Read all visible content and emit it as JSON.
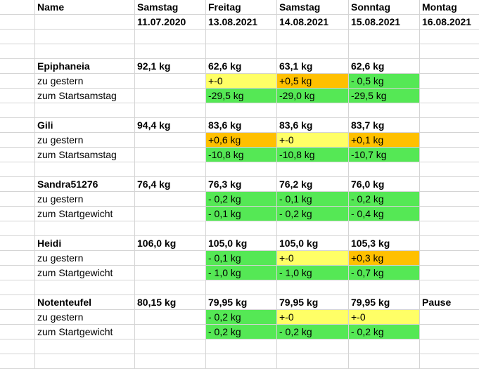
{
  "header": {
    "name": "Name",
    "days": [
      {
        "day": "Samstag",
        "date": "11.07.2020"
      },
      {
        "day": "Freitag",
        "date": "13.08.2021"
      },
      {
        "day": "Samstag",
        "date": "14.08.2021"
      },
      {
        "day": "Sonntag",
        "date": "15.08.2021"
      },
      {
        "day": "Montag",
        "date": "16.08.2021"
      }
    ]
  },
  "colors": {
    "green": "#55e855",
    "yellow": "#ffff66",
    "orange": "#ffc000"
  },
  "people": [
    {
      "name": "Epiphaneia",
      "weights": [
        "92,1 kg",
        "62,6 kg",
        "63,1 kg",
        "62,6 kg",
        ""
      ],
      "diff_label": "zu gestern",
      "diffs": [
        {
          "v": "+-0",
          "c": "yellow"
        },
        {
          "v": "+0,5 kg",
          "c": "orange"
        },
        {
          "v": "- 0,5 kg",
          "c": "green"
        }
      ],
      "total_label": "zum Startsamstag",
      "totals": [
        {
          "v": "-29,5 kg",
          "c": "green"
        },
        {
          "v": "-29,0 kg",
          "c": "green"
        },
        {
          "v": "-29,5 kg",
          "c": "green"
        }
      ]
    },
    {
      "name": "Gili",
      "weights": [
        "94,4 kg",
        "83,6 kg",
        "83,6 kg",
        "83,7 kg",
        ""
      ],
      "diff_label": "zu gestern",
      "diffs": [
        {
          "v": "+0,6 kg",
          "c": "orange"
        },
        {
          "v": "+-0",
          "c": "yellow"
        },
        {
          "v": "+0,1 kg",
          "c": "orange"
        }
      ],
      "total_label": "zum Startsamstag",
      "totals": [
        {
          "v": "-10,8 kg",
          "c": "green"
        },
        {
          "v": "-10,8 kg",
          "c": "green"
        },
        {
          "v": "-10,7 kg",
          "c": "green"
        }
      ]
    },
    {
      "name": "Sandra51276",
      "weights": [
        "76,4 kg",
        "76,3 kg",
        "76,2 kg",
        "76,0 kg",
        ""
      ],
      "diff_label": "zu gestern",
      "diffs": [
        {
          "v": "- 0,2 kg",
          "c": "green"
        },
        {
          "v": "- 0,1 kg",
          "c": "green"
        },
        {
          "v": "- 0,2 kg",
          "c": "green"
        }
      ],
      "total_label": "zum Startgewicht",
      "totals": [
        {
          "v": "- 0,1 kg",
          "c": "green"
        },
        {
          "v": "- 0,2 kg",
          "c": "green"
        },
        {
          "v": "- 0,4 kg",
          "c": "green"
        }
      ]
    },
    {
      "name": "Heidi",
      "weights": [
        "106,0 kg",
        "105,0 kg",
        "105,0 kg",
        "105,3 kg",
        ""
      ],
      "diff_label": "zu gestern",
      "diffs": [
        {
          "v": "- 0,1 kg",
          "c": "green"
        },
        {
          "v": "+-0",
          "c": "yellow"
        },
        {
          "v": "+0,3 kg",
          "c": "orange"
        }
      ],
      "total_label": "zum Startgewicht",
      "totals": [
        {
          "v": "- 1,0 kg",
          "c": "green"
        },
        {
          "v": "- 1,0 kg",
          "c": "green"
        },
        {
          "v": "- 0,7 kg",
          "c": "green"
        }
      ]
    },
    {
      "name": "Notenteufel",
      "weights": [
        "80,15 kg",
        "79,95 kg",
        "79,95 kg",
        "79,95 kg",
        "Pause"
      ],
      "diff_label": "zu gestern",
      "diffs": [
        {
          "v": "- 0,2 kg",
          "c": "green"
        },
        {
          "v": "+-0",
          "c": "yellow"
        },
        {
          "v": "+-0",
          "c": "yellow"
        }
      ],
      "total_label": "zum Startgewicht",
      "totals": [
        {
          "v": "- 0,2 kg",
          "c": "green"
        },
        {
          "v": "- 0,2 kg",
          "c": "green"
        },
        {
          "v": "- 0,2 kg",
          "c": "green"
        }
      ]
    }
  ]
}
